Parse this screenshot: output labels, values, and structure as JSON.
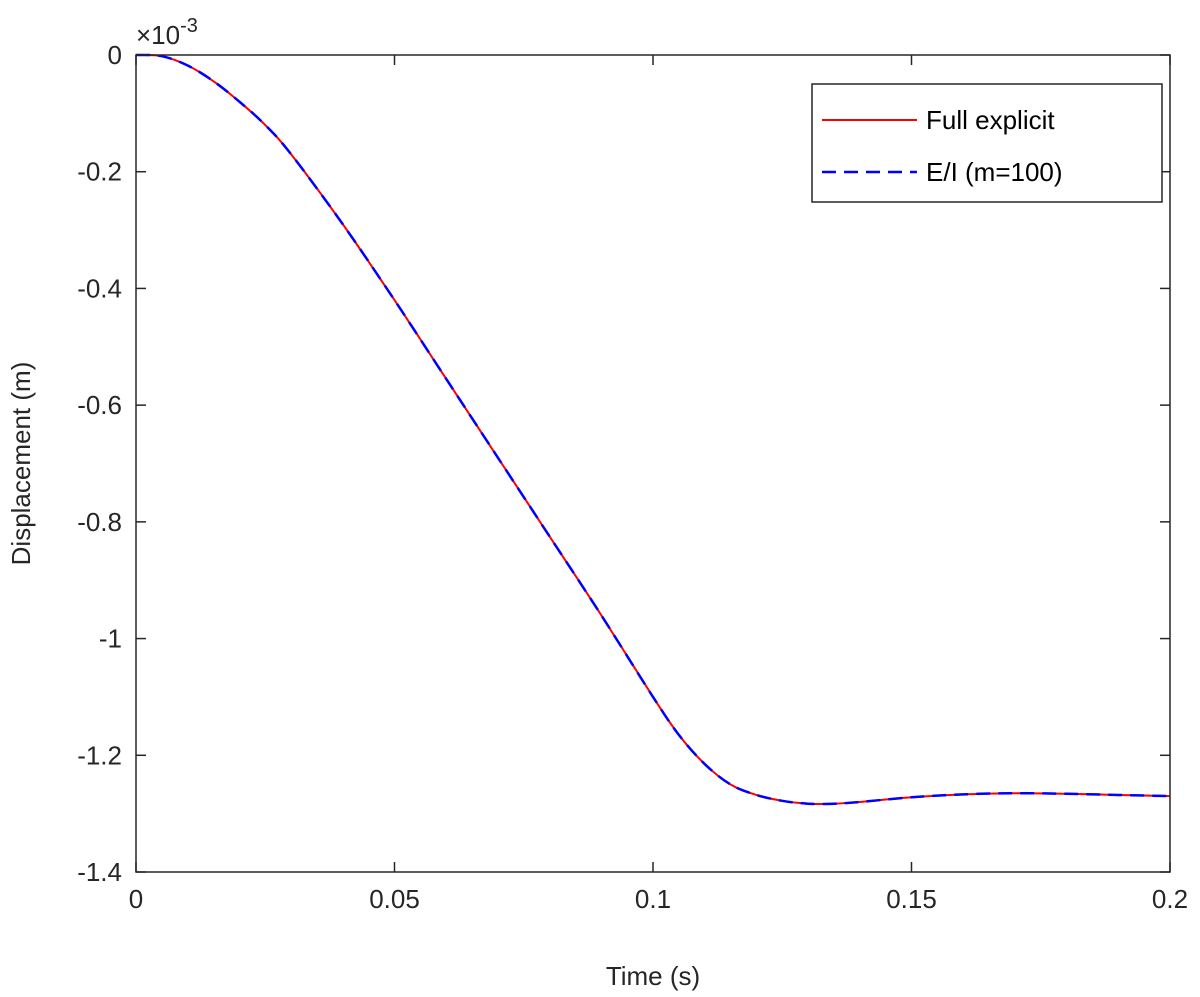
{
  "chart_data": {
    "type": "line",
    "xlabel": "Time (s)",
    "ylabel": "Displacement (m)",
    "y_exponent_prefix": "×10",
    "y_exponent_power": "-3",
    "xlim": [
      0,
      0.2
    ],
    "ylim": [
      -1.4,
      0
    ],
    "xticks": [
      0,
      0.05,
      0.1,
      0.15,
      0.2
    ],
    "xtick_labels": [
      "0",
      "0.05",
      "0.1",
      "0.15",
      "0.2"
    ],
    "yticks": [
      0,
      -0.2,
      -0.4,
      -0.6,
      -0.8,
      -1,
      -1.2,
      -1.4
    ],
    "ytick_labels": [
      "0",
      "-0.2",
      "-0.4",
      "-0.6",
      "-0.8",
      "-1",
      "-1.2",
      "-1.4"
    ],
    "grid": false,
    "legend_position": "top-right",
    "x": [
      0,
      0.005,
      0.01,
      0.015,
      0.02,
      0.025,
      0.03,
      0.04,
      0.05,
      0.06,
      0.07,
      0.08,
      0.09,
      0.1,
      0.105,
      0.11,
      0.115,
      0.12,
      0.125,
      0.13,
      0.135,
      0.14,
      0.15,
      0.16,
      0.17,
      0.18,
      0.19,
      0.2
    ],
    "series": [
      {
        "name": "Full explicit",
        "color": "#ff0000",
        "dash": "solid",
        "values": [
          0,
          -0.002,
          -0.018,
          -0.045,
          -0.08,
          -0.12,
          -0.17,
          -0.29,
          -0.42,
          -0.555,
          -0.69,
          -0.825,
          -0.96,
          -1.1,
          -1.165,
          -1.215,
          -1.25,
          -1.268,
          -1.278,
          -1.283,
          -1.283,
          -1.28,
          -1.272,
          -1.267,
          -1.265,
          -1.266,
          -1.268,
          -1.27
        ]
      },
      {
        "name": "E/I (m=100)",
        "color": "#0000ff",
        "dash": "dashed",
        "values": [
          0,
          -0.002,
          -0.018,
          -0.045,
          -0.08,
          -0.12,
          -0.17,
          -0.29,
          -0.42,
          -0.555,
          -0.69,
          -0.825,
          -0.96,
          -1.1,
          -1.165,
          -1.215,
          -1.25,
          -1.268,
          -1.278,
          -1.283,
          -1.283,
          -1.28,
          -1.272,
          -1.267,
          -1.265,
          -1.266,
          -1.268,
          -1.27
        ]
      }
    ]
  }
}
